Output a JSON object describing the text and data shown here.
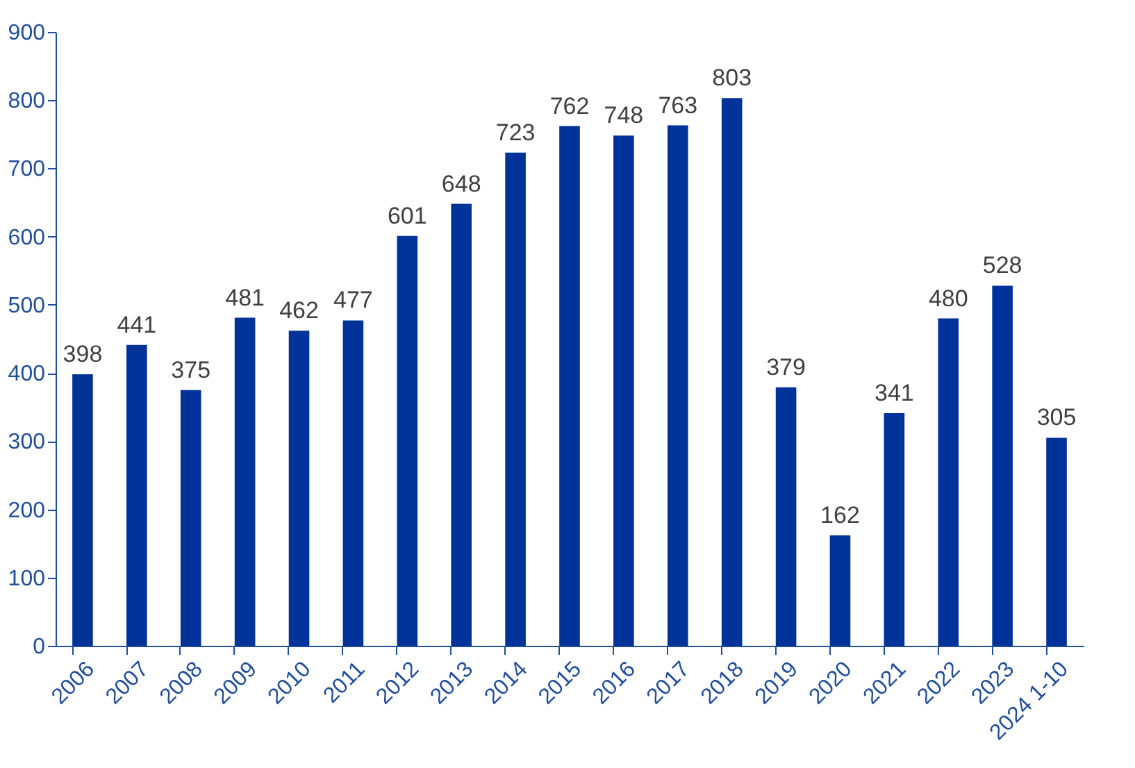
{
  "chart_data": {
    "type": "bar",
    "categories": [
      "2006",
      "2007",
      "2008",
      "2009",
      "2010",
      "2011",
      "2012",
      "2013",
      "2014",
      "2015",
      "2016",
      "2017",
      "2018",
      "2019",
      "2020",
      "2021",
      "2022",
      "2023",
      "2024 1-10"
    ],
    "values": [
      398,
      441,
      375,
      481,
      462,
      477,
      601,
      648,
      723,
      762,
      748,
      763,
      803,
      379,
      162,
      341,
      480,
      528,
      305
    ],
    "color": "#003399",
    "ylim": [
      0,
      900
    ],
    "yticks": [
      0,
      100,
      200,
      300,
      400,
      500,
      600,
      700,
      800,
      900
    ],
    "grid": false,
    "data_labels": true
  }
}
